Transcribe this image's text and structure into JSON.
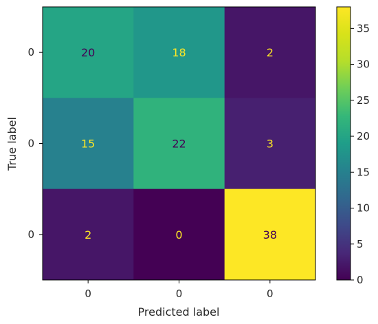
{
  "chart_data": {
    "type": "heatmap",
    "title": "",
    "xlabel": "Predicted label",
    "ylabel": "True label",
    "x_tick_labels": [
      "0",
      "0",
      "0"
    ],
    "y_tick_labels": [
      "0",
      "0",
      "0"
    ],
    "matrix": [
      [
        20,
        18,
        2
      ],
      [
        15,
        22,
        3
      ],
      [
        2,
        0,
        38
      ]
    ],
    "colorscale": "viridis",
    "colorbar": {
      "range": [
        0,
        38
      ],
      "ticks": [
        "0",
        "5",
        "10",
        "15",
        "20",
        "25",
        "30",
        "35"
      ]
    },
    "cell_text_colors": {
      "light": "#fde725",
      "dark": "#440154"
    }
  }
}
